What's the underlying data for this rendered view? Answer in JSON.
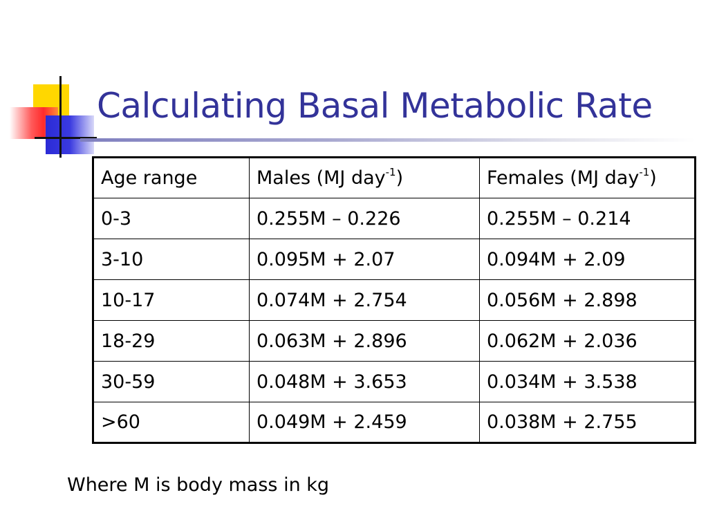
{
  "slide": {
    "title": "Calculating Basal Metabolic Rate",
    "footnote": "Where M is body mass in kg",
    "title_color": "#333399"
  },
  "table": {
    "headers": {
      "age": "Age range",
      "males_prefix": "Males (MJ day",
      "males_sup": "-1",
      "males_suffix": ")",
      "females_prefix": "Females (MJ day",
      "females_sup": "-1",
      "females_suffix": ")"
    },
    "rows": [
      {
        "age": "0-3",
        "males": "0.255M – 0.226",
        "females": "0.255M – 0.214"
      },
      {
        "age": "3-10",
        "males": "0.095M + 2.07",
        "females": "0.094M + 2.09"
      },
      {
        "age": "10-17",
        "males": "0.074M + 2.754",
        "females": "0.056M + 2.898"
      },
      {
        "age": "18-29",
        "males": "0.063M + 2.896",
        "females": "0.062M + 2.036"
      },
      {
        "age": "30-59",
        "males": "0.048M + 3.653",
        "females": "0.034M + 3.538"
      },
      {
        "age": ">60",
        "males": "0.049M + 2.459",
        "females": "0.038M + 2.755"
      }
    ]
  }
}
